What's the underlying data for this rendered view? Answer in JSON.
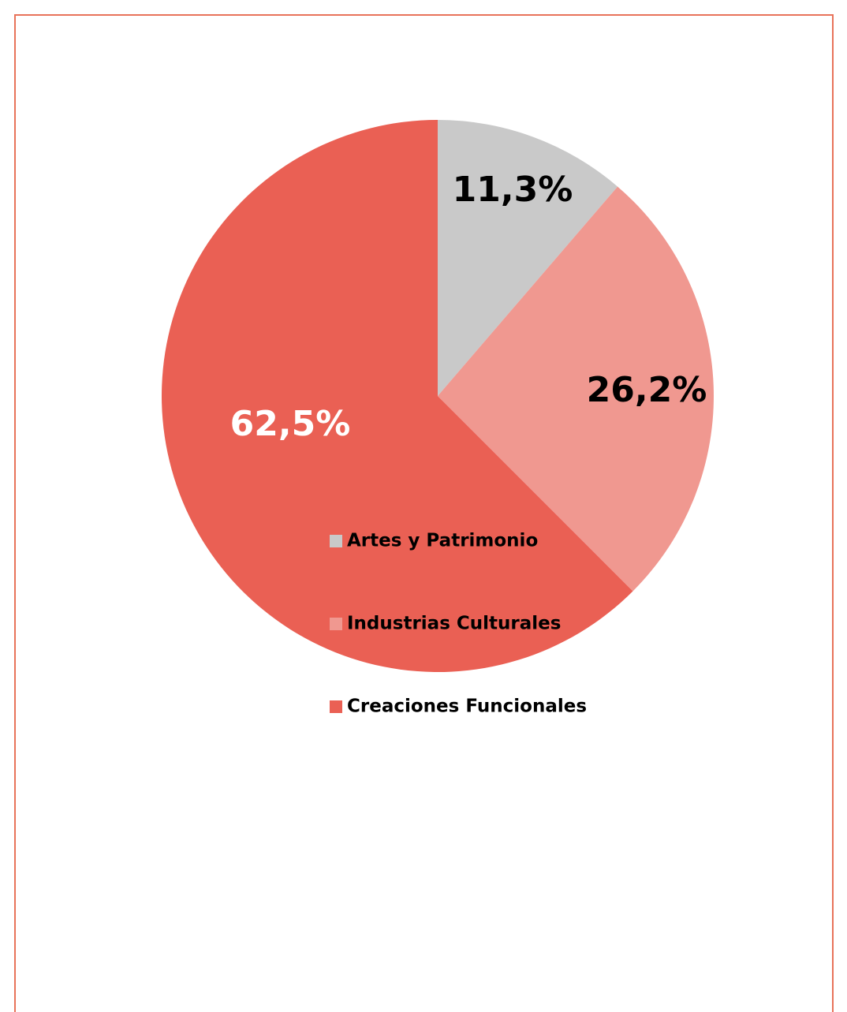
{
  "chart_data": {
    "type": "pie",
    "categories": [
      "Artes y Patrimonio",
      "Industrias Culturales",
      "Creaciones Funcionales"
    ],
    "values": [
      11.3,
      26.2,
      62.5
    ],
    "value_labels": [
      "11,3%",
      "26,2%",
      "62,5%"
    ],
    "colors": [
      "#c9c9c9",
      "#f09890",
      "#ea6054"
    ],
    "label_colors": [
      "#000000",
      "#000000",
      "#ffffff"
    ],
    "legend": "bottom"
  }
}
